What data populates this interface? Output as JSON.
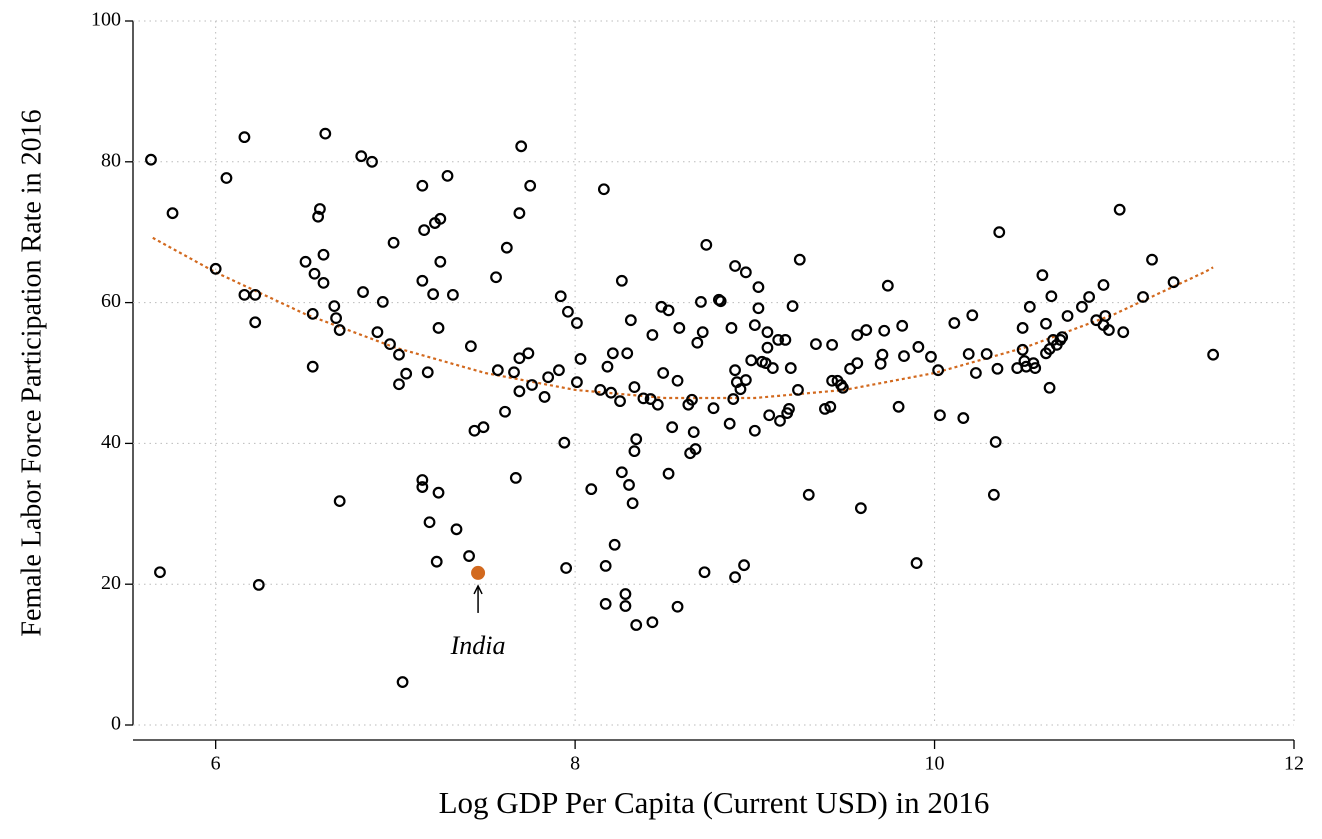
{
  "chart_data": {
    "type": "scatter",
    "xlabel": "Log GDP Per Capita (Current USD) in 2016",
    "ylabel": "Female Labor Force Participation Rate in 2016",
    "xlim": [
      5.54,
      12
    ],
    "ylim": [
      0,
      100
    ],
    "xticks": [
      6,
      8,
      10,
      12
    ],
    "yticks": [
      0,
      20,
      40,
      60,
      80,
      100
    ],
    "grid": true,
    "color": "#000000",
    "x": [
      5.64,
      5.69,
      5.76,
      6.0,
      6.06,
      6.16,
      6.16,
      6.22,
      6.22,
      6.24,
      6.5,
      6.54,
      6.54,
      6.55,
      6.58,
      6.57,
      6.6,
      6.6,
      6.61,
      6.66,
      6.67,
      6.69,
      6.69,
      6.81,
      6.82,
      6.87,
      6.9,
      6.93,
      6.97,
      6.99,
      7.02,
      7.02,
      7.04,
      7.06,
      7.15,
      7.15,
      7.15,
      7.15,
      7.16,
      7.18,
      7.19,
      7.21,
      7.22,
      7.23,
      7.25,
      7.25,
      7.24,
      7.24,
      7.29,
      7.32,
      7.34,
      7.41,
      7.42,
      7.44,
      7.49,
      7.56,
      7.57,
      7.61,
      7.62,
      7.66,
      7.67,
      7.69,
      7.69,
      7.69,
      7.7,
      7.74,
      7.75,
      7.76,
      7.83,
      7.85,
      7.91,
      7.92,
      7.94,
      7.95,
      7.96,
      8.01,
      8.01,
      8.03,
      8.09,
      8.14,
      8.16,
      8.17,
      8.17,
      8.18,
      8.2,
      8.21,
      8.22,
      8.25,
      8.26,
      8.26,
      8.28,
      8.28,
      8.29,
      8.3,
      8.31,
      8.32,
      8.33,
      8.33,
      8.34,
      8.34,
      8.38,
      8.42,
      8.43,
      8.43,
      8.46,
      8.48,
      8.49,
      8.52,
      8.52,
      8.54,
      8.57,
      8.57,
      8.58,
      8.63,
      8.64,
      8.65,
      8.66,
      8.67,
      8.68,
      8.7,
      8.71,
      8.72,
      8.73,
      8.77,
      8.8,
      8.81,
      8.86,
      8.87,
      8.88,
      8.89,
      8.89,
      8.89,
      8.9,
      8.92,
      8.94,
      8.95,
      8.95,
      8.98,
      9.0,
      9.0,
      9.02,
      9.02,
      9.04,
      9.06,
      9.07,
      9.07,
      9.08,
      9.1,
      9.13,
      9.14,
      9.17,
      9.18,
      9.19,
      9.2,
      9.21,
      9.24,
      9.25,
      9.3,
      9.34,
      9.39,
      9.42,
      9.43,
      9.43,
      9.46,
      9.48,
      9.49,
      9.53,
      9.57,
      9.57,
      9.59,
      9.62,
      9.7,
      9.71,
      9.72,
      9.74,
      9.8,
      9.82,
      9.83,
      9.9,
      9.91,
      9.98,
      10.02,
      10.03,
      10.11,
      10.16,
      10.19,
      10.21,
      10.23,
      10.29,
      10.33,
      10.34,
      10.35,
      10.36,
      10.46,
      10.49,
      10.49,
      10.5,
      10.51,
      10.53,
      10.55,
      10.56,
      10.6,
      10.62,
      10.62,
      10.64,
      10.64,
      10.65,
      10.66,
      10.68,
      10.7,
      10.71,
      10.74,
      10.82,
      10.86,
      10.9,
      10.94,
      10.94,
      10.95,
      10.97,
      11.03,
      11.05,
      11.16,
      11.21,
      11.33,
      11.55
    ],
    "values": [
      80.3,
      21.7,
      72.7,
      64.8,
      77.7,
      83.5,
      61.1,
      61.1,
      57.2,
      19.9,
      65.8,
      58.4,
      50.9,
      64.1,
      73.3,
      72.2,
      66.8,
      62.8,
      84.0,
      59.5,
      57.8,
      56.1,
      31.8,
      80.8,
      61.5,
      80.0,
      55.8,
      60.1,
      54.1,
      68.5,
      52.6,
      48.4,
      6.1,
      49.9,
      76.6,
      34.8,
      33.8,
      63.1,
      70.3,
      50.1,
      28.8,
      61.2,
      71.3,
      23.2,
      65.8,
      71.9,
      56.4,
      33.0,
      78.0,
      61.1,
      27.8,
      24.0,
      53.8,
      41.8,
      42.3,
      63.6,
      50.4,
      44.5,
      67.8,
      50.1,
      35.1,
      47.4,
      52.1,
      72.7,
      82.2,
      52.8,
      76.6,
      48.3,
      46.6,
      49.4,
      50.4,
      60.9,
      40.1,
      22.3,
      58.7,
      57.1,
      48.7,
      52.0,
      33.5,
      47.6,
      76.1,
      22.6,
      17.2,
      50.9,
      47.2,
      52.8,
      25.6,
      46.0,
      63.1,
      35.9,
      18.6,
      16.9,
      52.8,
      34.1,
      57.5,
      31.5,
      48.0,
      38.9,
      40.6,
      14.2,
      46.4,
      46.3,
      55.4,
      14.6,
      45.5,
      59.4,
      50.0,
      58.9,
      35.7,
      42.3,
      48.9,
      16.8,
      56.4,
      45.5,
      38.6,
      46.2,
      41.6,
      39.2,
      54.3,
      60.1,
      55.8,
      21.7,
      68.2,
      45.0,
      60.4,
      60.2,
      42.8,
      56.4,
      46.3,
      65.2,
      50.4,
      21.0,
      48.7,
      47.7,
      22.7,
      64.3,
      49.0,
      51.8,
      41.8,
      56.8,
      62.2,
      59.2,
      51.6,
      51.4,
      53.6,
      55.8,
      44.0,
      50.7,
      54.7,
      43.2,
      54.7,
      44.3,
      44.9,
      50.7,
      59.5,
      47.6,
      66.1,
      32.7,
      54.1,
      44.9,
      45.2,
      54.0,
      48.9,
      48.9,
      48.3,
      47.9,
      50.6,
      55.4,
      51.4,
      30.8,
      56.1,
      51.3,
      52.6,
      56.0,
      62.4,
      45.2,
      56.7,
      52.4,
      23.0,
      53.7,
      52.3,
      50.4,
      44.0,
      57.1,
      43.6,
      52.7,
      58.2,
      50.0,
      52.7,
      32.7,
      40.2,
      50.6,
      70.0,
      50.7,
      56.4,
      53.3,
      51.7,
      50.9,
      59.4,
      51.4,
      50.7,
      63.9,
      57.0,
      52.8,
      53.4,
      47.9,
      60.9,
      54.7,
      54.0,
      54.7,
      55.1,
      58.1,
      59.4,
      60.8,
      57.5,
      56.8,
      62.5,
      58.1,
      56.1,
      73.2,
      55.8,
      60.8,
      66.1,
      62.9,
      52.6
    ],
    "fit": {
      "color": "#d2691e",
      "x": [
        5.65,
        6.0,
        6.5,
        7.0,
        7.5,
        8.0,
        8.5,
        9.0,
        9.5,
        10.0,
        10.5,
        11.0,
        11.5,
        11.55
      ],
      "values": [
        69.2,
        64.3,
        58.35,
        53.6,
        50.0,
        47.6,
        46.45,
        46.45,
        47.6,
        50.0,
        53.6,
        58.35,
        64.3,
        65.0
      ]
    },
    "highlight": {
      "x": 7.46,
      "y": 21.6,
      "color": "#d2691e",
      "label": "India"
    }
  }
}
